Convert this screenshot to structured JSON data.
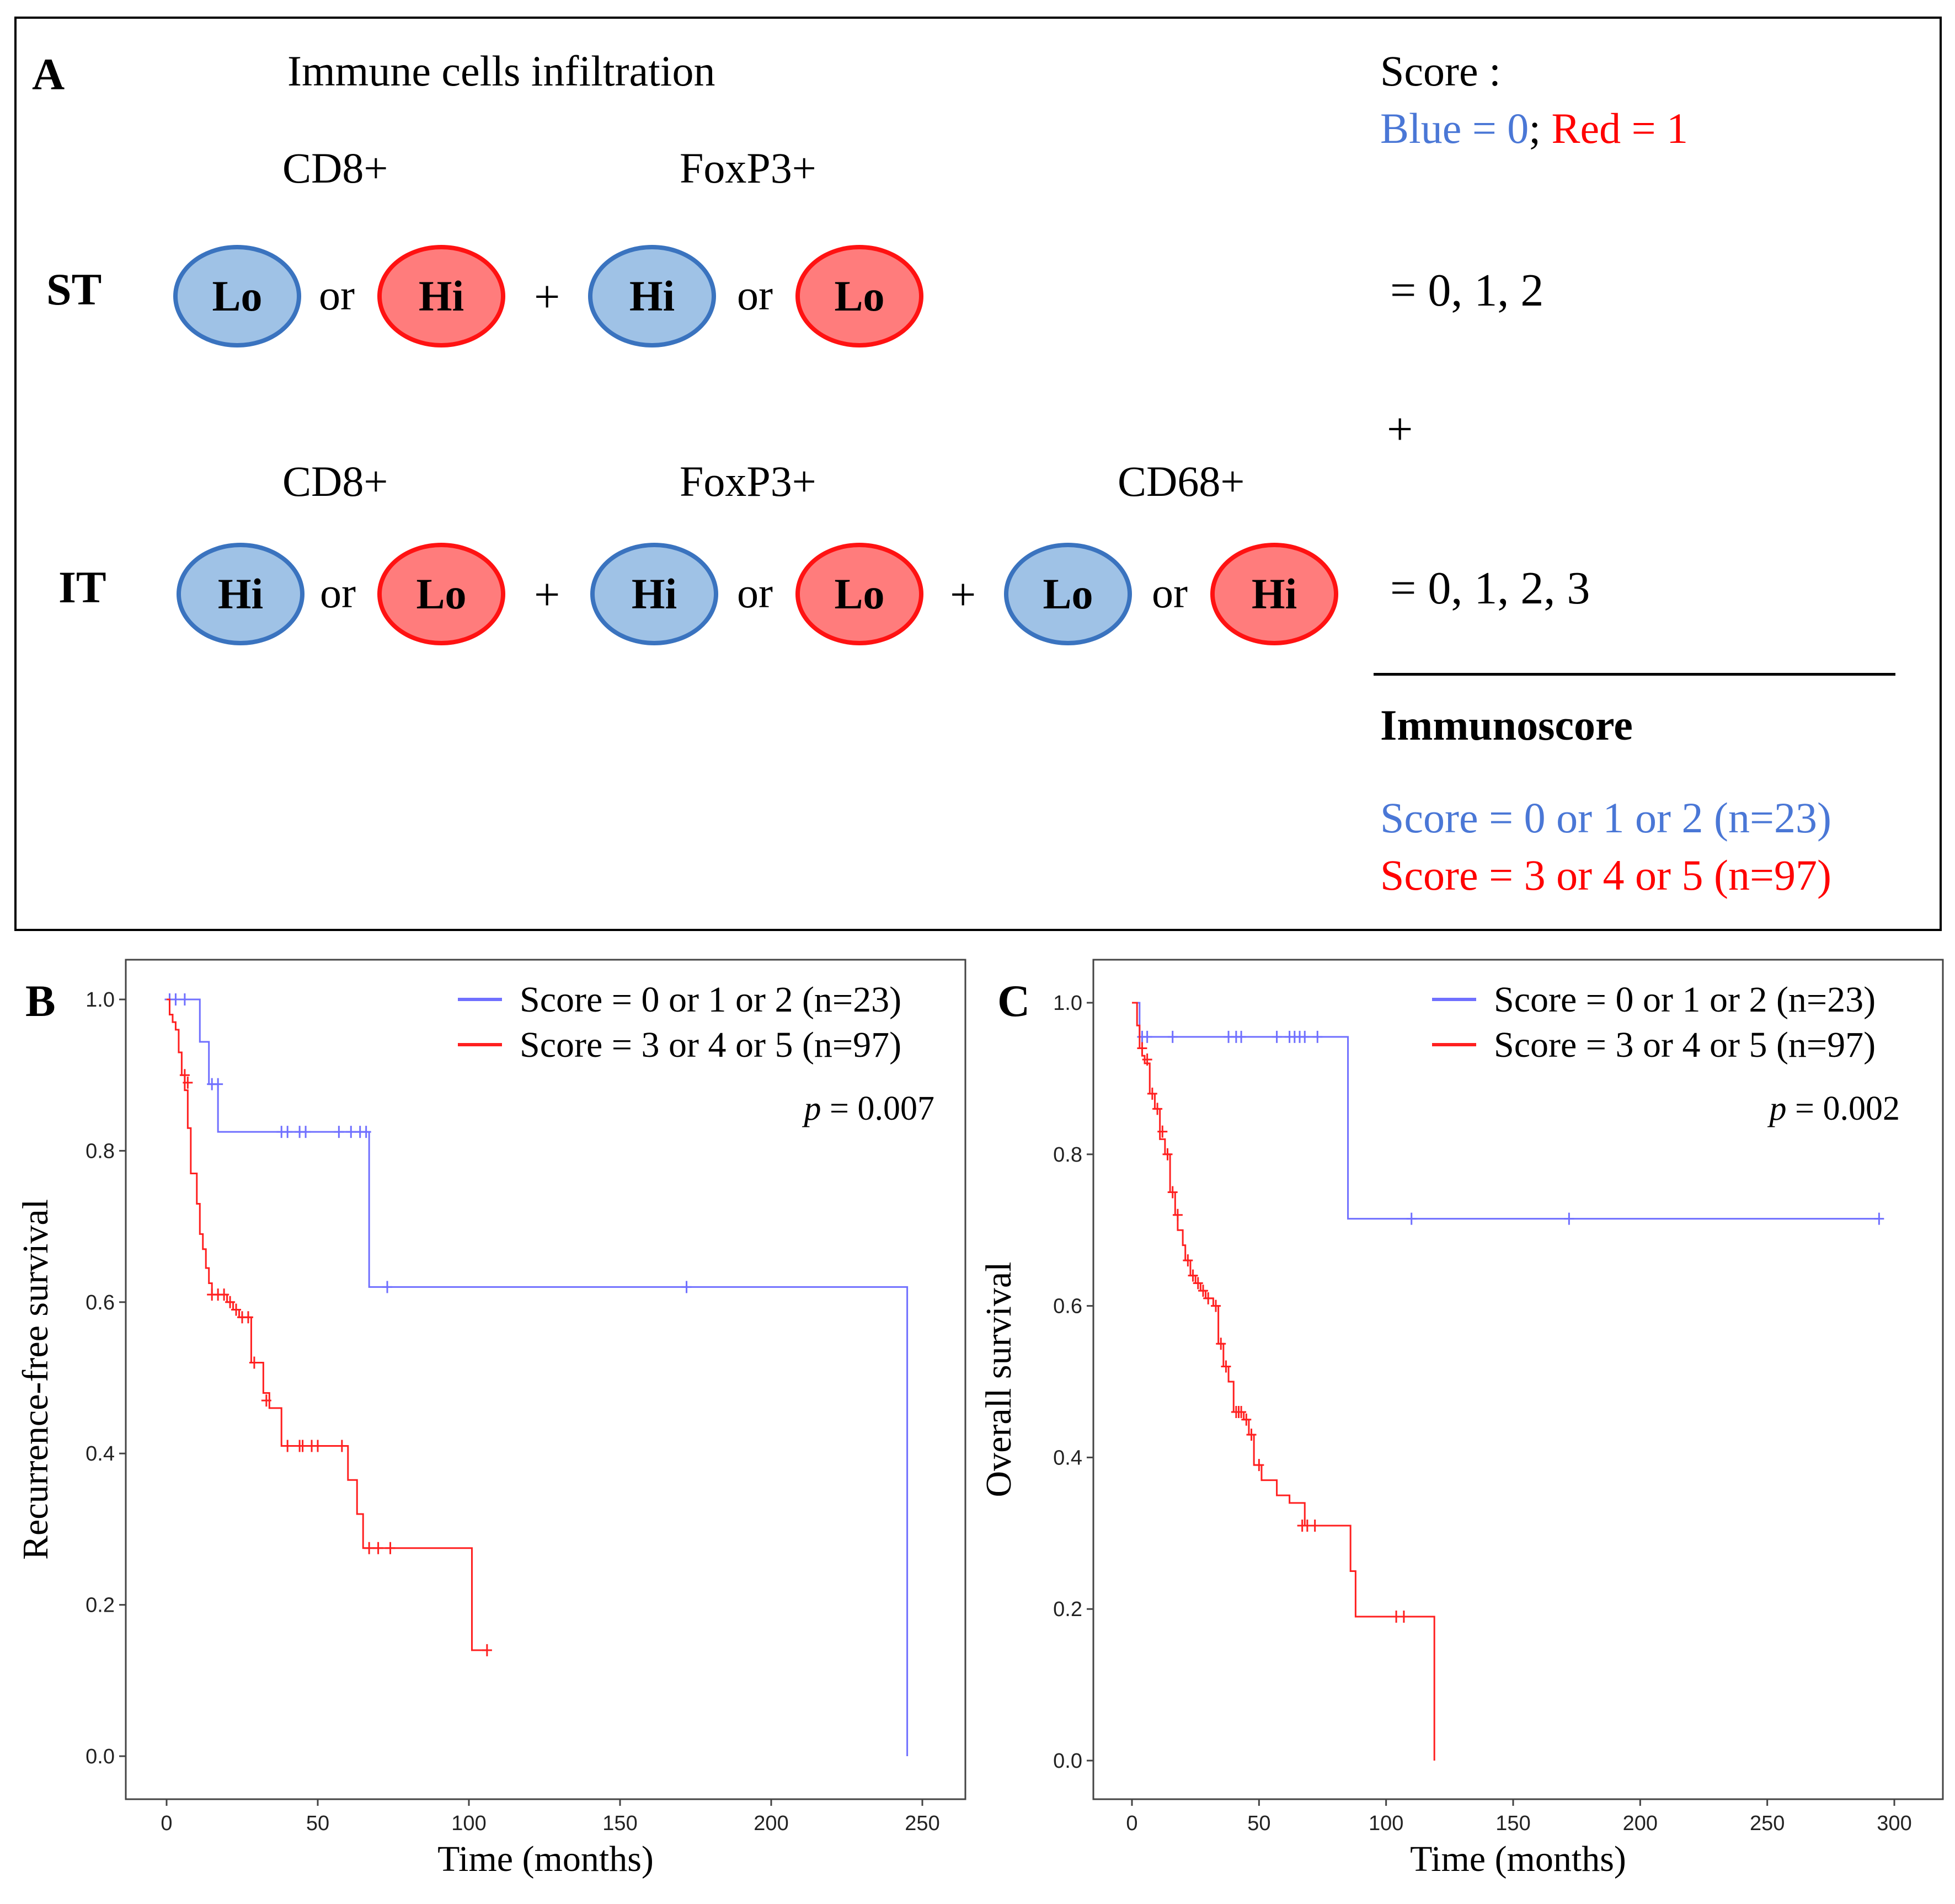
{
  "panel_a": {
    "letter": "A",
    "title": "Immune cells infiltration",
    "score_title": "Score :",
    "score_blue": "Blue = 0",
    "score_sep": ";",
    "score_red": "Red = 1",
    "st_label": "ST",
    "it_label": "IT",
    "st_markers": [
      "CD8+",
      "FoxP3+"
    ],
    "it_markers": [
      "CD8+",
      "FoxP3+",
      "CD68+"
    ],
    "st_pairs": [
      {
        "blue": "Lo",
        "red": "Hi"
      },
      {
        "blue": "Hi",
        "red": "Lo"
      }
    ],
    "it_pairs": [
      {
        "blue": "Hi",
        "red": "Lo"
      },
      {
        "blue": "Hi",
        "red": "Lo"
      },
      {
        "blue": "Lo",
        "red": "Hi"
      }
    ],
    "or_text": "or",
    "plus": "+",
    "st_result": "= 0, 1, 2",
    "it_result": "= 0, 1, 2, 3",
    "immunoscore_title": "Immunoscore",
    "immuno_low": "Score = 0 or 1 or 2 (n=23)",
    "immuno_high": "Score = 3 or 4 or 5 (n=97)",
    "colors": {
      "blue": "#4a77d6",
      "red": "#ff0000"
    }
  },
  "chart_data": [
    {
      "panel": "B",
      "type": "line",
      "step": true,
      "title": "",
      "xlabel": "Time (months)",
      "ylabel": "Recurrence-free survival",
      "xlim": [
        0,
        250
      ],
      "ylim": [
        0.0,
        1.0
      ],
      "xticks": [
        0,
        50,
        100,
        150,
        200,
        250
      ],
      "yticks": [
        "0.0",
        "0.2",
        "0.4",
        "0.6",
        "0.8",
        "1.0"
      ],
      "pvalue_label": "p",
      "pvalue": "= 0.007",
      "legend_position": "top-right",
      "series": [
        {
          "name": "Score = 0 or 1 or 2 (n=23)",
          "color": "#7070ff",
          "steps": [
            [
              0,
              1.0
            ],
            [
              11,
              0.944
            ],
            [
              14,
              0.888
            ],
            [
              17,
              0.825
            ],
            [
              67,
              0.62
            ],
            [
              245,
              0.0
            ]
          ],
          "end": 245,
          "censors": [
            [
              1,
              1.0
            ],
            [
              3,
              1.0
            ],
            [
              6,
              1.0
            ],
            [
              15,
              0.888
            ],
            [
              17,
              0.888
            ],
            [
              38,
              0.825
            ],
            [
              40,
              0.825
            ],
            [
              44,
              0.825
            ],
            [
              46,
              0.825
            ],
            [
              57,
              0.825
            ],
            [
              61,
              0.825
            ],
            [
              64,
              0.825
            ],
            [
              66,
              0.825
            ],
            [
              73,
              0.62
            ],
            [
              172,
              0.62
            ]
          ]
        },
        {
          "name": "Score = 3 or 4 or 5 (n=97)",
          "color": "#ff2020",
          "steps": [
            [
              0,
              1.0
            ],
            [
              1,
              0.98
            ],
            [
              2,
              0.97
            ],
            [
              3,
              0.96
            ],
            [
              4,
              0.93
            ],
            [
              5,
              0.9
            ],
            [
              6,
              0.88
            ],
            [
              7,
              0.83
            ],
            [
              8,
              0.77
            ],
            [
              10,
              0.73
            ],
            [
              11,
              0.69
            ],
            [
              12,
              0.67
            ],
            [
              13,
              0.645
            ],
            [
              14,
              0.625
            ],
            [
              15,
              0.61
            ],
            [
              20,
              0.6
            ],
            [
              22,
              0.59
            ],
            [
              24,
              0.58
            ],
            [
              28,
              0.52
            ],
            [
              32,
              0.48
            ],
            [
              34,
              0.46
            ],
            [
              38,
              0.41
            ],
            [
              60,
              0.365
            ],
            [
              63,
              0.32
            ],
            [
              65,
              0.275
            ],
            [
              101,
              0.14
            ],
            [
              106,
              0.14
            ]
          ],
          "end": 106,
          "censors": [
            [
              6,
              0.9
            ],
            [
              7,
              0.89
            ],
            [
              15,
              0.61
            ],
            [
              17,
              0.61
            ],
            [
              19,
              0.61
            ],
            [
              21,
              0.6
            ],
            [
              23,
              0.59
            ],
            [
              25,
              0.58
            ],
            [
              27,
              0.58
            ],
            [
              29,
              0.52
            ],
            [
              33,
              0.47
            ],
            [
              40,
              0.41
            ],
            [
              44,
              0.41
            ],
            [
              45,
              0.41
            ],
            [
              48,
              0.41
            ],
            [
              50,
              0.41
            ],
            [
              58,
              0.41
            ],
            [
              67,
              0.275
            ],
            [
              70,
              0.275
            ],
            [
              74,
              0.275
            ],
            [
              106,
              0.14
            ]
          ]
        }
      ]
    },
    {
      "panel": "C",
      "type": "line",
      "step": true,
      "title": "",
      "xlabel": "Time (months)",
      "ylabel": "Overall survival",
      "xlim": [
        0,
        300
      ],
      "ylim": [
        0.0,
        1.0
      ],
      "xticks": [
        0,
        50,
        100,
        150,
        200,
        250,
        300
      ],
      "yticks": [
        "0.0",
        "0.2",
        "0.4",
        "0.6",
        "0.8",
        "1.0"
      ],
      "pvalue_label": "p",
      "pvalue": "= 0.002",
      "legend_position": "top-right",
      "series": [
        {
          "name": "Score = 0 or 1 or 2 (n=23)",
          "color": "#7070ff",
          "steps": [
            [
              0,
              1.0
            ],
            [
              3,
              0.955
            ],
            [
              85,
              0.715
            ],
            [
              294,
              0.715
            ]
          ],
          "end": 294,
          "censors": [
            [
              4,
              0.955
            ],
            [
              6,
              0.955
            ],
            [
              16,
              0.955
            ],
            [
              38,
              0.955
            ],
            [
              41,
              0.955
            ],
            [
              43,
              0.955
            ],
            [
              57,
              0.955
            ],
            [
              62,
              0.955
            ],
            [
              64,
              0.955
            ],
            [
              66,
              0.955
            ],
            [
              68,
              0.955
            ],
            [
              73,
              0.955
            ],
            [
              110,
              0.715
            ],
            [
              172,
              0.715
            ],
            [
              294,
              0.715
            ]
          ]
        },
        {
          "name": "Score = 3 or 4 or 5 (n=97)",
          "color": "#ff2020",
          "steps": [
            [
              0,
              1.0
            ],
            [
              2,
              0.97
            ],
            [
              3,
              0.94
            ],
            [
              4,
              0.93
            ],
            [
              5,
              0.92
            ],
            [
              7,
              0.88
            ],
            [
              9,
              0.86
            ],
            [
              11,
              0.82
            ],
            [
              13,
              0.8
            ],
            [
              15,
              0.75
            ],
            [
              17,
              0.72
            ],
            [
              18,
              0.7
            ],
            [
              20,
              0.68
            ],
            [
              21,
              0.66
            ],
            [
              23,
              0.64
            ],
            [
              25,
              0.63
            ],
            [
              27,
              0.62
            ],
            [
              29,
              0.61
            ],
            [
              32,
              0.6
            ],
            [
              34,
              0.55
            ],
            [
              36,
              0.52
            ],
            [
              38,
              0.5
            ],
            [
              40,
              0.46
            ],
            [
              44,
              0.45
            ],
            [
              46,
              0.43
            ],
            [
              48,
              0.39
            ],
            [
              51,
              0.37
            ],
            [
              57,
              0.35
            ],
            [
              62,
              0.34
            ],
            [
              68,
              0.31
            ],
            [
              86,
              0.25
            ],
            [
              88,
              0.19
            ],
            [
              119,
              0.0
            ]
          ],
          "end": 119,
          "censors": [
            [
              4,
              0.94
            ],
            [
              6,
              0.925
            ],
            [
              8,
              0.88
            ],
            [
              10,
              0.86
            ],
            [
              12,
              0.83
            ],
            [
              14,
              0.8
            ],
            [
              16,
              0.75
            ],
            [
              18,
              0.72
            ],
            [
              22,
              0.66
            ],
            [
              24,
              0.64
            ],
            [
              26,
              0.63
            ],
            [
              28,
              0.62
            ],
            [
              30,
              0.61
            ],
            [
              33,
              0.6
            ],
            [
              35,
              0.55
            ],
            [
              37,
              0.52
            ],
            [
              41,
              0.46
            ],
            [
              42,
              0.46
            ],
            [
              43,
              0.46
            ],
            [
              45,
              0.45
            ],
            [
              47,
              0.43
            ],
            [
              50,
              0.39
            ],
            [
              67,
              0.31
            ],
            [
              69,
              0.31
            ],
            [
              72,
              0.31
            ],
            [
              104,
              0.19
            ],
            [
              107,
              0.19
            ]
          ]
        }
      ]
    }
  ]
}
